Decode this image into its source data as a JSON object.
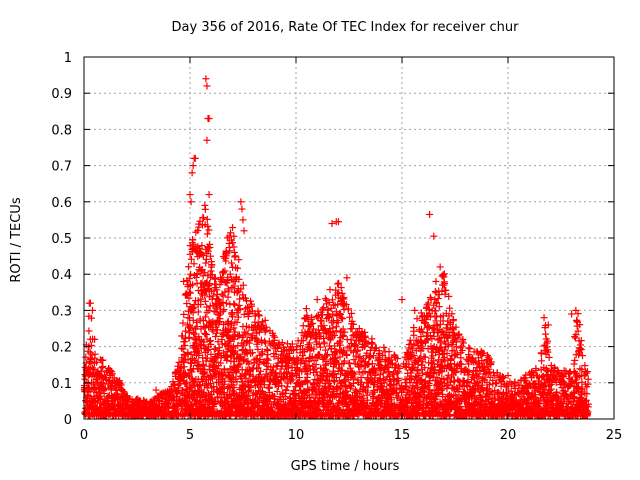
{
  "chart_data": {
    "type": "scatter",
    "title": "Day 356 of 2016, Rate Of TEC Index for receiver chur",
    "xlabel": "GPS time / hours",
    "ylabel": "ROTI / TECUs",
    "xlim": [
      0,
      25
    ],
    "ylim": [
      0,
      1
    ],
    "xticks": [
      0,
      5,
      10,
      15,
      20,
      25
    ],
    "yticks": [
      0,
      0.1,
      0.2,
      0.3,
      0.4,
      0.5,
      0.6,
      0.7,
      0.8,
      0.9,
      1
    ],
    "xtick_labels": [
      "0",
      "5",
      "10",
      "15",
      "20",
      "25"
    ],
    "ytick_labels": [
      "0",
      "0.1",
      "0.2",
      "0.3",
      "0.4",
      "0.5",
      "0.6",
      "0.7",
      "0.8",
      "0.9",
      "1"
    ],
    "grid": true,
    "marker": "plus",
    "color": "#ff0000",
    "envelope": {
      "x": [
        0,
        0.3,
        0.5,
        1.0,
        1.5,
        2.0,
        2.5,
        3.0,
        3.5,
        4.0,
        4.5,
        4.8,
        5.0,
        5.5,
        5.8,
        6.0,
        6.3,
        6.6,
        7.0,
        7.3,
        7.6,
        8.0,
        8.5,
        9.0,
        9.5,
        10.0,
        10.5,
        11.0,
        11.5,
        12.0,
        12.5,
        13.0,
        13.5,
        14.0,
        14.5,
        15.0,
        15.5,
        16.0,
        16.5,
        17.0,
        17.5,
        18.0,
        18.5,
        19.0,
        19.5,
        20.0,
        20.5,
        21.0,
        21.5,
        21.8,
        22.0,
        22.5,
        23.0,
        23.3,
        23.6,
        23.8
      ],
      "upper": [
        0.14,
        0.32,
        0.18,
        0.15,
        0.12,
        0.06,
        0.05,
        0.04,
        0.06,
        0.08,
        0.15,
        0.35,
        0.5,
        0.55,
        0.6,
        0.45,
        0.35,
        0.45,
        0.55,
        0.4,
        0.35,
        0.3,
        0.28,
        0.22,
        0.2,
        0.2,
        0.3,
        0.28,
        0.35,
        0.38,
        0.3,
        0.25,
        0.22,
        0.2,
        0.18,
        0.15,
        0.25,
        0.3,
        0.35,
        0.4,
        0.25,
        0.2,
        0.18,
        0.18,
        0.12,
        0.1,
        0.1,
        0.12,
        0.15,
        0.28,
        0.15,
        0.12,
        0.14,
        0.3,
        0.15,
        0.12
      ]
    },
    "outliers": [
      [
        0.25,
        0.32
      ],
      [
        0.3,
        0.32
      ],
      [
        0.4,
        0.3
      ],
      [
        0.5,
        0.22
      ],
      [
        3.4,
        0.08
      ],
      [
        4.7,
        0.38
      ],
      [
        5.0,
        0.62
      ],
      [
        5.05,
        0.6
      ],
      [
        5.1,
        0.68
      ],
      [
        5.15,
        0.7
      ],
      [
        5.2,
        0.72
      ],
      [
        5.25,
        0.72
      ],
      [
        5.75,
        0.94
      ],
      [
        5.8,
        0.92
      ],
      [
        5.85,
        0.83
      ],
      [
        5.9,
        0.83
      ],
      [
        5.8,
        0.77
      ],
      [
        5.9,
        0.62
      ],
      [
        5.7,
        0.59
      ],
      [
        6.9,
        0.4
      ],
      [
        7.1,
        0.46
      ],
      [
        7.4,
        0.6
      ],
      [
        7.45,
        0.58
      ],
      [
        7.5,
        0.55
      ],
      [
        7.55,
        0.52
      ],
      [
        7.3,
        0.44
      ],
      [
        11.7,
        0.54
      ],
      [
        11.9,
        0.545
      ],
      [
        12.0,
        0.545
      ],
      [
        12.4,
        0.39
      ],
      [
        11.0,
        0.33
      ],
      [
        15.0,
        0.33
      ],
      [
        15.6,
        0.3
      ],
      [
        16.3,
        0.565
      ],
      [
        16.5,
        0.505
      ],
      [
        16.8,
        0.42
      ],
      [
        16.6,
        0.38
      ],
      [
        20.0,
        0.12
      ],
      [
        21.7,
        0.28
      ],
      [
        21.9,
        0.26
      ],
      [
        23.0,
        0.29
      ],
      [
        23.2,
        0.3
      ]
    ]
  }
}
